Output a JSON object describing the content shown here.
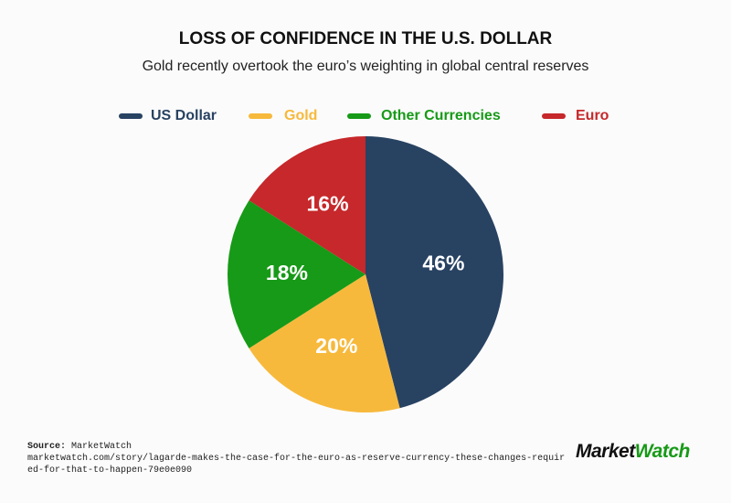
{
  "chart_data": {
    "type": "pie",
    "title": "LOSS OF CONFIDENCE IN THE U.S. DOLLAR",
    "subtitle": "Gold recently overtook the euro’s weighting in global central reserves",
    "categories": [
      "US Dollar",
      "Gold",
      "Other Currencies",
      "Euro"
    ],
    "values": [
      46,
      20,
      18,
      16
    ],
    "value_labels": [
      "46%",
      "20%",
      "18%",
      "16%"
    ],
    "colors": [
      "#284262",
      "#f7b93c",
      "#179a17",
      "#c6282b"
    ],
    "legend": "top"
  },
  "source": {
    "label": "Source:",
    "name": "MarketWatch",
    "url": "marketwatch.com/story/lagarde-makes-the-case-for-the-euro-as-reserve-currency-these-changes-required-for-that-to-happen-79e0e090"
  },
  "logo": {
    "first": "Market",
    "second": "Watch"
  }
}
